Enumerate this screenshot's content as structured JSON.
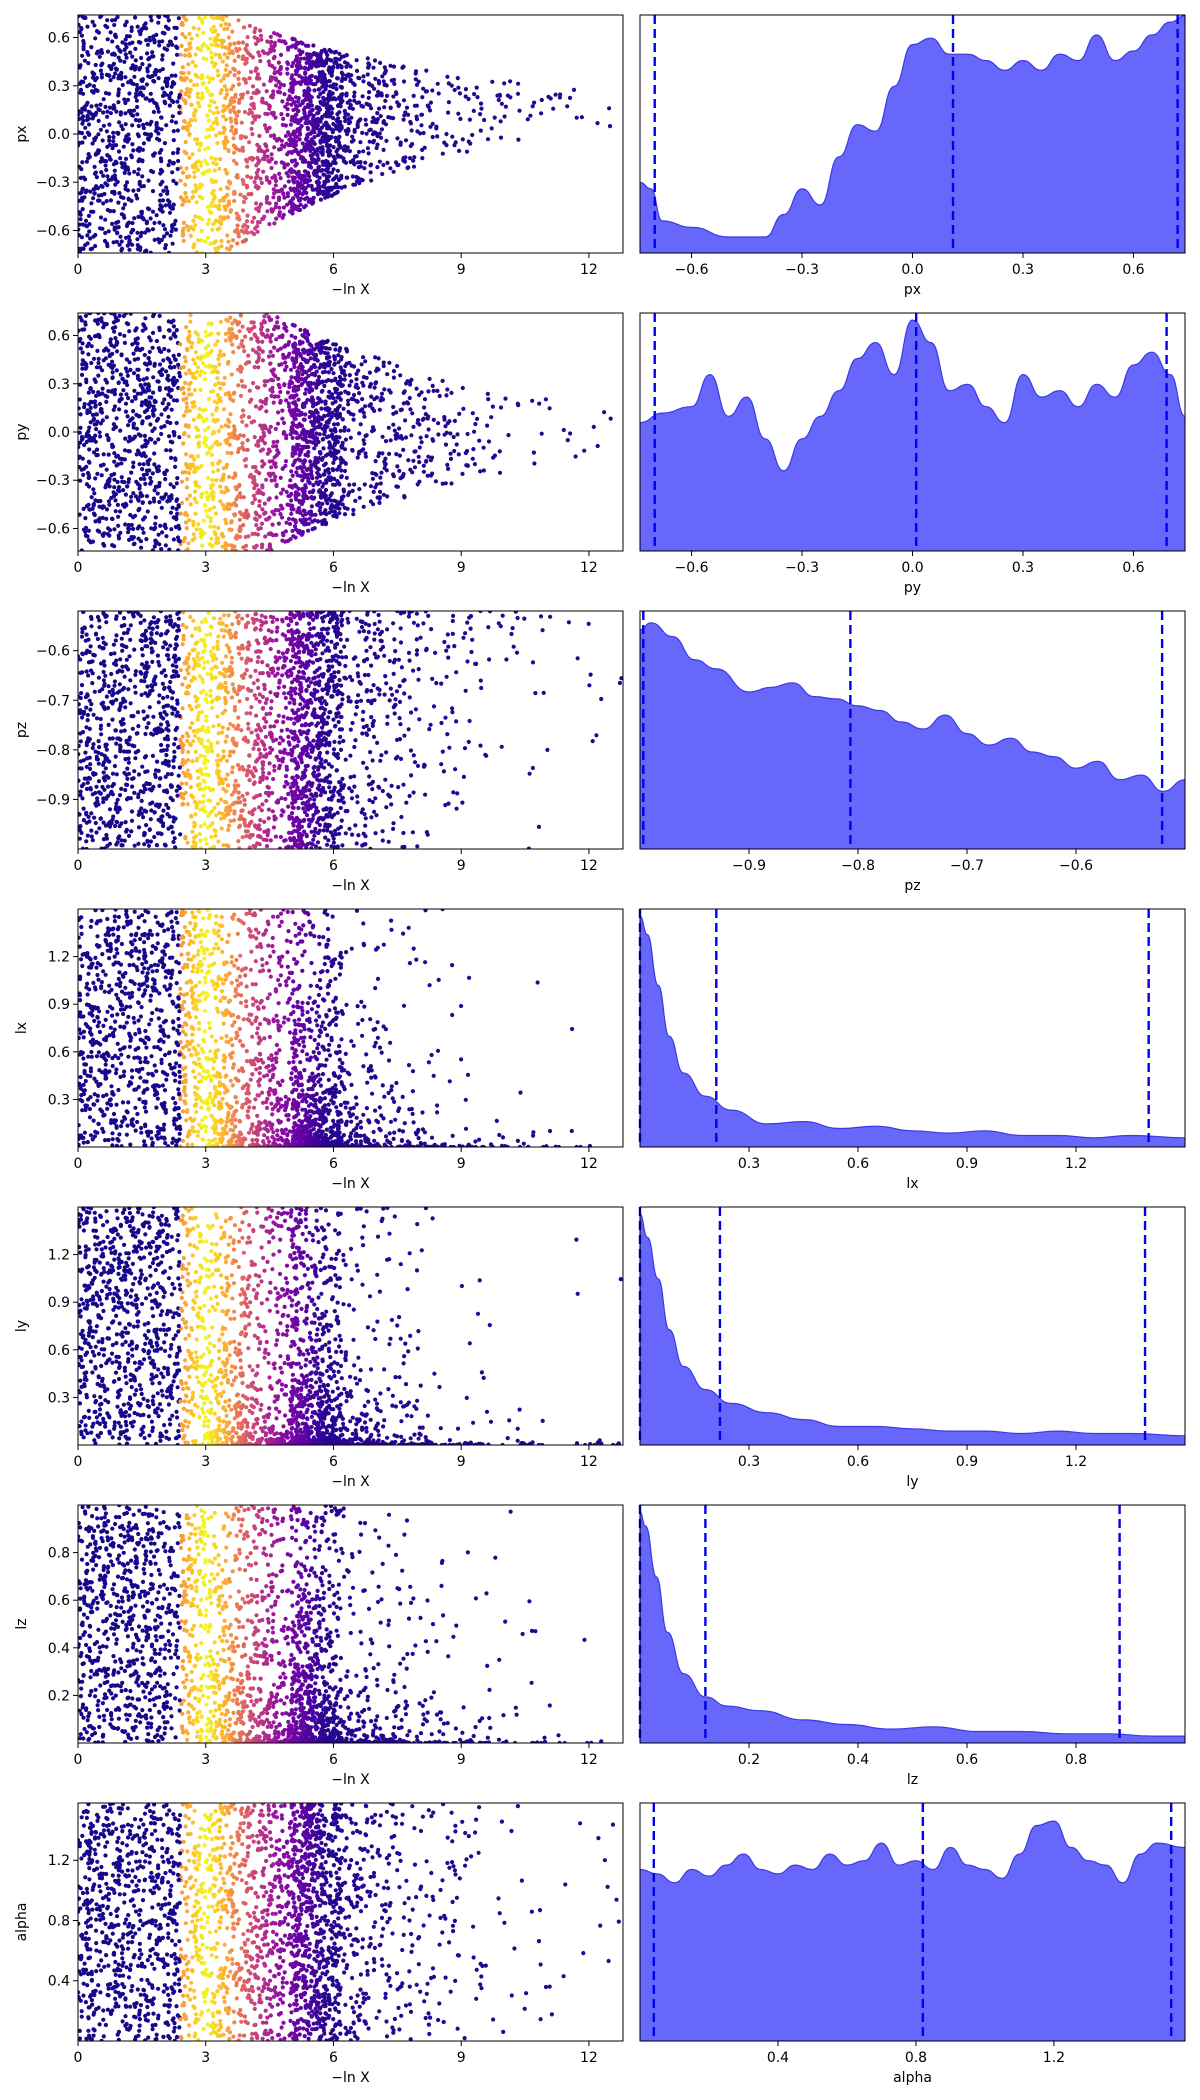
{
  "chart_data": [
    {
      "type": "scatter",
      "param": "px",
      "ylabel": "px",
      "xlabel": "−ln X",
      "xlim": [
        0,
        12.8
      ],
      "ylim": [
        -0.74,
        0.74
      ],
      "xticks": [
        "0",
        "3",
        "6",
        "9",
        "12"
      ],
      "yticks": [
        "−0.6",
        "−0.3",
        "0.0",
        "0.3",
        "0.6"
      ],
      "cloud": {
        "kind": "symmetric",
        "taper_start": 3.5,
        "taper_rate": 0.09,
        "center": 0.18,
        "max_x": 12.8
      }
    },
    {
      "type": "area",
      "param": "px",
      "xlabel": "px",
      "xlim": [
        -0.74,
        0.74
      ],
      "ymax": 0.72,
      "xticks": [
        "−0.6",
        "−0.3",
        "0.0",
        "0.3",
        "0.6"
      ],
      "density_x": [
        -0.74,
        -0.71,
        -0.68,
        -0.6,
        -0.5,
        -0.4,
        -0.35,
        -0.3,
        -0.25,
        -0.2,
        -0.15,
        -0.1,
        -0.05,
        0.0,
        0.05,
        0.1,
        0.15,
        0.2,
        0.25,
        0.3,
        0.35,
        0.4,
        0.45,
        0.5,
        0.55,
        0.6,
        0.65,
        0.7,
        0.74
      ],
      "density_y": [
        0.22,
        0.2,
        0.1,
        0.08,
        0.05,
        0.05,
        0.12,
        0.2,
        0.15,
        0.3,
        0.4,
        0.38,
        0.52,
        0.65,
        0.67,
        0.62,
        0.62,
        0.6,
        0.57,
        0.6,
        0.57,
        0.62,
        0.6,
        0.68,
        0.6,
        0.63,
        0.68,
        0.72,
        0.74
      ],
      "quantile_lines": [
        -0.7,
        0.11,
        0.72
      ]
    },
    {
      "type": "scatter",
      "param": "py",
      "ylabel": "py",
      "xlabel": "−ln X",
      "xlim": [
        0,
        12.8
      ],
      "ylim": [
        -0.74,
        0.74
      ],
      "xticks": [
        "0",
        "3",
        "6",
        "9",
        "12"
      ],
      "yticks": [
        "−0.6",
        "−0.3",
        "0.0",
        "0.3",
        "0.6"
      ],
      "cloud": {
        "kind": "symmetric",
        "taper_start": 4.5,
        "taper_rate": 0.085,
        "center": 0.0,
        "max_x": 12.8
      }
    },
    {
      "type": "area",
      "param": "py",
      "xlabel": "py",
      "xlim": [
        -0.74,
        0.74
      ],
      "ymax": 0.72,
      "xticks": [
        "−0.6",
        "−0.3",
        "0.0",
        "0.3",
        "0.6"
      ],
      "density_x": [
        -0.74,
        -0.68,
        -0.6,
        -0.55,
        -0.5,
        -0.45,
        -0.4,
        -0.35,
        -0.3,
        -0.25,
        -0.2,
        -0.15,
        -0.1,
        -0.05,
        0.0,
        0.05,
        0.1,
        0.15,
        0.2,
        0.25,
        0.3,
        0.35,
        0.4,
        0.45,
        0.5,
        0.55,
        0.6,
        0.65,
        0.7,
        0.74
      ],
      "density_y": [
        0.4,
        0.43,
        0.45,
        0.55,
        0.42,
        0.48,
        0.35,
        0.25,
        0.35,
        0.42,
        0.5,
        0.6,
        0.65,
        0.55,
        0.72,
        0.65,
        0.5,
        0.52,
        0.45,
        0.4,
        0.55,
        0.48,
        0.5,
        0.45,
        0.52,
        0.48,
        0.58,
        0.62,
        0.55,
        0.42
      ],
      "quantile_lines": [
        -0.7,
        0.01,
        0.69
      ]
    },
    {
      "type": "scatter",
      "param": "pz",
      "ylabel": "pz",
      "xlabel": "−ln X",
      "xlim": [
        0,
        12.8
      ],
      "ylim": [
        -1.0,
        -0.52
      ],
      "xticks": [
        "0",
        "3",
        "6",
        "9",
        "12"
      ],
      "yticks": [
        "−0.9",
        "−0.8",
        "−0.7",
        "−0.6"
      ],
      "cloud": {
        "kind": "upper",
        "taper_start": 5.5,
        "taper_rate": 0.04,
        "max_x": 12.8
      }
    },
    {
      "type": "area",
      "param": "pz",
      "xlabel": "pz",
      "xlim": [
        -1.0,
        -0.5
      ],
      "ymax": 1.0,
      "xticks": [
        "−0.9",
        "−0.8",
        "−0.7",
        "−0.6"
      ],
      "density_x": [
        -1.0,
        -0.99,
        -0.97,
        -0.95,
        -0.93,
        -0.9,
        -0.88,
        -0.86,
        -0.84,
        -0.82,
        -0.8,
        -0.78,
        -0.76,
        -0.74,
        -0.72,
        -0.7,
        -0.68,
        -0.66,
        -0.64,
        -0.62,
        -0.6,
        -0.58,
        -0.56,
        -0.54,
        -0.52,
        -0.5
      ],
      "density_y": [
        0.95,
        0.98,
        0.92,
        0.82,
        0.78,
        0.68,
        0.7,
        0.72,
        0.66,
        0.65,
        0.62,
        0.6,
        0.55,
        0.52,
        0.58,
        0.5,
        0.45,
        0.48,
        0.42,
        0.4,
        0.35,
        0.38,
        0.3,
        0.32,
        0.25,
        0.3
      ],
      "quantile_lines": [
        -0.997,
        -0.807,
        -0.521
      ]
    },
    {
      "type": "scatter",
      "param": "lx",
      "ylabel": "lx",
      "xlabel": "−ln X",
      "xlim": [
        0,
        12.8
      ],
      "ylim": [
        0,
        1.5
      ],
      "xticks": [
        "0",
        "3",
        "6",
        "9",
        "12"
      ],
      "yticks": [
        "0.3",
        "0.6",
        "0.9",
        "1.2"
      ],
      "cloud": {
        "kind": "lower",
        "taper_start": 4.0,
        "taper_rate": 0.18,
        "max_x": 12.8
      }
    },
    {
      "type": "area",
      "param": "lx",
      "xlabel": "lx",
      "xlim": [
        0,
        1.5
      ],
      "ymax": 1.0,
      "xticks": [
        "0.3",
        "0.6",
        "0.9",
        "1.2"
      ],
      "density_x": [
        0,
        0.02,
        0.05,
        0.08,
        0.12,
        0.18,
        0.25,
        0.35,
        0.45,
        0.55,
        0.65,
        0.75,
        0.85,
        0.95,
        1.05,
        1.15,
        1.25,
        1.35,
        1.5
      ],
      "density_y": [
        1.0,
        0.92,
        0.7,
        0.48,
        0.32,
        0.22,
        0.16,
        0.1,
        0.11,
        0.08,
        0.09,
        0.07,
        0.06,
        0.07,
        0.05,
        0.05,
        0.04,
        0.05,
        0.04
      ],
      "quantile_lines": [
        0.0,
        0.21,
        1.4
      ]
    },
    {
      "type": "scatter",
      "param": "ly",
      "ylabel": "ly",
      "xlabel": "−ln X",
      "xlim": [
        0,
        12.8
      ],
      "ylim": [
        0,
        1.5
      ],
      "xticks": [
        "0",
        "3",
        "6",
        "9",
        "12"
      ],
      "yticks": [
        "0.3",
        "0.6",
        "0.9",
        "1.2"
      ],
      "cloud": {
        "kind": "lower",
        "taper_start": 4.0,
        "taper_rate": 0.16,
        "max_x": 12.8
      }
    },
    {
      "type": "area",
      "param": "ly",
      "xlabel": "ly",
      "xlim": [
        0,
        1.5
      ],
      "ymax": 1.0,
      "xticks": [
        "0.3",
        "0.6",
        "0.9",
        "1.2"
      ],
      "density_x": [
        0,
        0.02,
        0.05,
        0.08,
        0.12,
        0.18,
        0.25,
        0.35,
        0.45,
        0.55,
        0.65,
        0.75,
        0.85,
        0.95,
        1.05,
        1.15,
        1.25,
        1.35,
        1.5
      ],
      "density_y": [
        1.0,
        0.9,
        0.72,
        0.5,
        0.34,
        0.24,
        0.18,
        0.14,
        0.11,
        0.08,
        0.08,
        0.07,
        0.06,
        0.06,
        0.05,
        0.06,
        0.05,
        0.05,
        0.04
      ],
      "quantile_lines": [
        0.0,
        0.22,
        1.39
      ]
    },
    {
      "type": "scatter",
      "param": "lz",
      "ylabel": "lz",
      "xlabel": "−ln X",
      "xlim": [
        0,
        12.8
      ],
      "ylim": [
        0,
        1.0
      ],
      "xticks": [
        "0",
        "3",
        "6",
        "9",
        "12"
      ],
      "yticks": [
        "0.2",
        "0.4",
        "0.6",
        "0.8"
      ],
      "cloud": {
        "kind": "lower",
        "taper_start": 4.0,
        "taper_rate": 0.17,
        "max_x": 12.8
      }
    },
    {
      "type": "area",
      "param": "lz",
      "xlabel": "lz",
      "xlim": [
        0,
        1.0
      ],
      "ymax": 1.0,
      "xticks": [
        "0.2",
        "0.4",
        "0.6",
        "0.8"
      ],
      "density_x": [
        0,
        0.01,
        0.03,
        0.05,
        0.08,
        0.12,
        0.16,
        0.22,
        0.3,
        0.38,
        0.46,
        0.54,
        0.62,
        0.7,
        0.78,
        0.86,
        0.94,
        1.0
      ],
      "density_y": [
        1.0,
        0.94,
        0.72,
        0.48,
        0.3,
        0.2,
        0.16,
        0.14,
        0.1,
        0.08,
        0.06,
        0.07,
        0.05,
        0.05,
        0.04,
        0.04,
        0.03,
        0.03
      ],
      "quantile_lines": [
        0.0,
        0.12,
        0.88
      ]
    },
    {
      "type": "scatter",
      "param": "alpha",
      "ylabel": "alpha",
      "xlabel": "−ln X",
      "xlim": [
        0,
        12.8
      ],
      "ylim": [
        0,
        1.58
      ],
      "xticks": [
        "0",
        "3",
        "6",
        "9",
        "12"
      ],
      "yticks": [
        "0.4",
        "0.8",
        "1.2"
      ],
      "cloud": {
        "kind": "uniform",
        "taper_start": 5.5,
        "taper_rate": 0.05,
        "max_x": 12.8
      }
    },
    {
      "type": "area",
      "param": "alpha",
      "xlabel": "alpha",
      "xlim": [
        0,
        1.58
      ],
      "ymax": 1.05,
      "xticks": [
        "0.4",
        "0.8",
        "1.2"
      ],
      "density_x": [
        0,
        0.05,
        0.1,
        0.15,
        0.2,
        0.25,
        0.3,
        0.35,
        0.4,
        0.45,
        0.5,
        0.55,
        0.6,
        0.65,
        0.7,
        0.75,
        0.8,
        0.85,
        0.9,
        0.95,
        1.0,
        1.05,
        1.1,
        1.15,
        1.2,
        1.25,
        1.3,
        1.35,
        1.4,
        1.45,
        1.5,
        1.58
      ],
      "density_y": [
        0.78,
        0.76,
        0.72,
        0.78,
        0.75,
        0.8,
        0.85,
        0.78,
        0.76,
        0.8,
        0.78,
        0.85,
        0.8,
        0.82,
        0.9,
        0.8,
        0.82,
        0.78,
        0.88,
        0.8,
        0.78,
        0.74,
        0.85,
        0.98,
        1.0,
        0.88,
        0.82,
        0.8,
        0.72,
        0.85,
        0.9,
        0.88
      ],
      "quantile_lines": [
        0.04,
        0.82,
        1.54
      ]
    }
  ]
}
